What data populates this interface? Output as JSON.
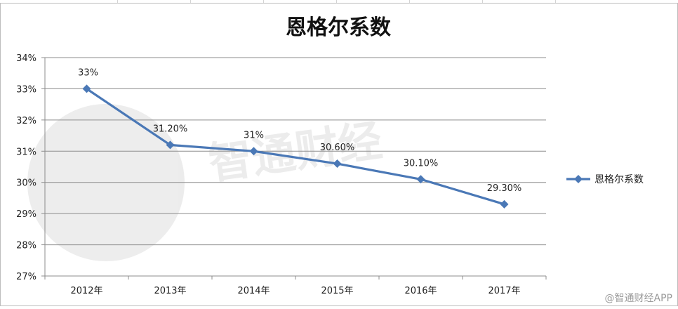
{
  "chart_data": {
    "type": "line",
    "title": "恩格尔系数",
    "categories": [
      "2012年",
      "2013年",
      "2014年",
      "2015年",
      "2016年",
      "2017年"
    ],
    "series": [
      {
        "name": "恩格尔系数",
        "values": [
          33.0,
          31.2,
          31.0,
          30.6,
          30.1,
          29.3
        ],
        "labels": [
          "33%",
          "31.20%",
          "31%",
          "30.60%",
          "30.10%",
          "29.30%"
        ],
        "color": "#4a78b6",
        "marker": "diamond"
      }
    ],
    "y_ticks": [
      "27%",
      "28%",
      "29%",
      "30%",
      "31%",
      "32%",
      "33%",
      "34%"
    ],
    "ylim": [
      27,
      34
    ],
    "y_unit": "%",
    "grid": true,
    "legend_position": "right"
  },
  "watermark": {
    "brand": "智通财经"
  },
  "credit": "@智通财经APP"
}
